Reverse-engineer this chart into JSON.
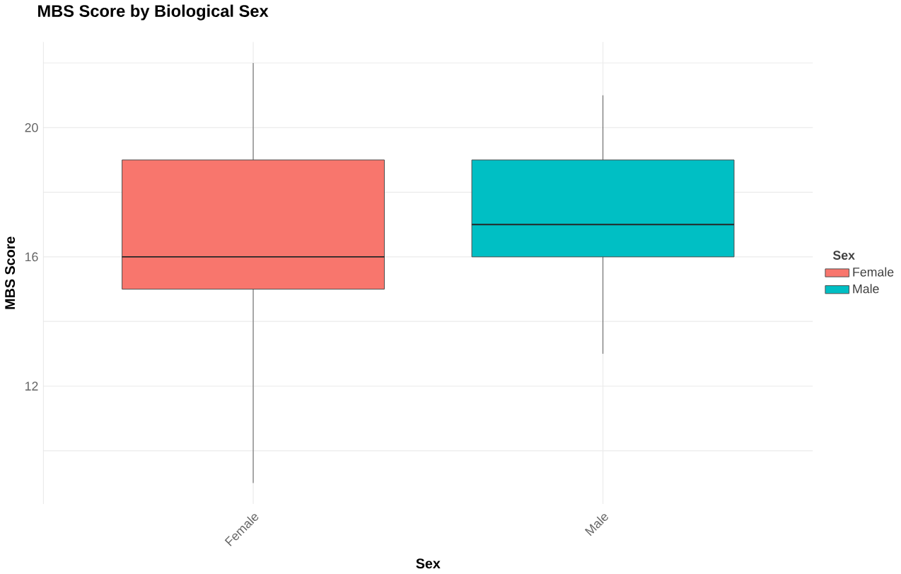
{
  "chart_data": {
    "type": "box",
    "title": "MBS Score by Biological Sex",
    "xlabel": "Sex",
    "ylabel": "MBS Score",
    "legend_title": "Sex",
    "categories": [
      "Female",
      "Male"
    ],
    "series": [
      {
        "name": "Female",
        "color": "#f8766d",
        "boxes": [
          {
            "low": 9,
            "q1": 15,
            "median": 16,
            "q3": 19,
            "high": 22
          },
          null
        ]
      },
      {
        "name": "Male",
        "color": "#00bfc4",
        "boxes": [
          null,
          {
            "low": 13,
            "q1": 16,
            "median": 17,
            "q3": 19,
            "high": 21
          }
        ]
      }
    ],
    "ylim": [
      8.35,
      22.65
    ],
    "yticks": [
      {
        "value": 10,
        "label": null
      },
      12,
      {
        "value": 14,
        "label": null
      },
      16,
      {
        "value": 18,
        "label": null
      },
      20,
      {
        "value": 22,
        "label": null
      }
    ],
    "grid": true,
    "legend": "right"
  }
}
